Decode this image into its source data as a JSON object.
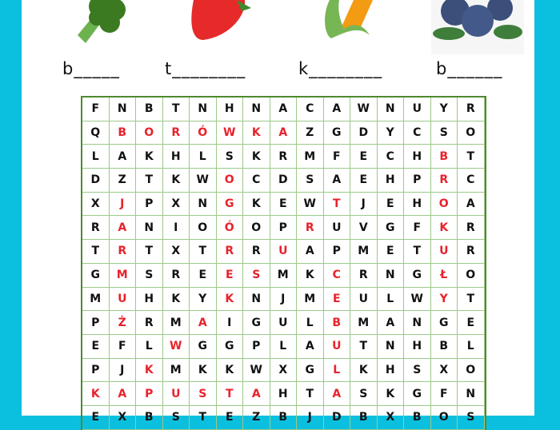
{
  "clues": [
    {
      "picture": "broccoli",
      "hint": "b_____"
    },
    {
      "picture": "strawberry",
      "hint": "t________"
    },
    {
      "picture": "corn",
      "hint": "k________"
    },
    {
      "picture": "blueberries",
      "hint": "b______"
    }
  ],
  "colors": {
    "background": "#0bc0df",
    "grid_border": "#4f8a2e",
    "highlight": "#e8222b"
  },
  "grid": [
    {
      "letters": [
        "F",
        "N",
        "B",
        "T",
        "N",
        "H",
        "N",
        "A",
        "C",
        "A",
        "W",
        "N",
        "U",
        "Y",
        "R"
      ],
      "highlighted": []
    },
    {
      "letters": [
        "Q",
        "B",
        "O",
        "R",
        "Ó",
        "W",
        "K",
        "A",
        "Z",
        "G",
        "D",
        "Y",
        "C",
        "S",
        "O"
      ],
      "highlighted": [
        1,
        2,
        3,
        4,
        5,
        6,
        7
      ]
    },
    {
      "letters": [
        "L",
        "A",
        "K",
        "H",
        "L",
        "S",
        "K",
        "R",
        "M",
        "F",
        "E",
        "C",
        "H",
        "B",
        "T"
      ],
      "highlighted": [
        13
      ]
    },
    {
      "letters": [
        "D",
        "Z",
        "T",
        "K",
        "W",
        "O",
        "C",
        "D",
        "S",
        "A",
        "E",
        "H",
        "P",
        "R",
        "C"
      ],
      "highlighted": [
        5,
        13
      ]
    },
    {
      "letters": [
        "X",
        "J",
        "P",
        "X",
        "N",
        "G",
        "K",
        "E",
        "W",
        "T",
        "J",
        "E",
        "H",
        "O",
        "A"
      ],
      "highlighted": [
        1,
        5,
        9,
        13
      ]
    },
    {
      "letters": [
        "R",
        "A",
        "N",
        "I",
        "O",
        "Ó",
        "O",
        "P",
        "R",
        "U",
        "V",
        "G",
        "F",
        "K",
        "R"
      ],
      "highlighted": [
        1,
        5,
        8,
        13
      ]
    },
    {
      "letters": [
        "T",
        "R",
        "T",
        "X",
        "T",
        "R",
        "R",
        "U",
        "A",
        "P",
        "M",
        "E",
        "T",
        "U",
        "R"
      ],
      "highlighted": [
        1,
        5,
        7,
        13
      ]
    },
    {
      "letters": [
        "G",
        "M",
        "S",
        "R",
        "E",
        "E",
        "S",
        "M",
        "K",
        "C",
        "R",
        "N",
        "G",
        "Ł",
        "O"
      ],
      "highlighted": [
        1,
        5,
        6,
        9,
        13
      ]
    },
    {
      "letters": [
        "M",
        "U",
        "H",
        "K",
        "Y",
        "K",
        "N",
        "J",
        "M",
        "E",
        "U",
        "L",
        "W",
        "Y",
        "T"
      ],
      "highlighted": [
        1,
        5,
        9,
        13
      ]
    },
    {
      "letters": [
        "P",
        "Ż",
        "R",
        "M",
        "A",
        "I",
        "G",
        "U",
        "L",
        "B",
        "M",
        "A",
        "N",
        "G",
        "E"
      ],
      "highlighted": [
        1,
        4,
        9
      ]
    },
    {
      "letters": [
        "E",
        "F",
        "L",
        "W",
        "G",
        "G",
        "P",
        "L",
        "A",
        "U",
        "T",
        "N",
        "H",
        "B",
        "L"
      ],
      "highlighted": [
        3,
        9
      ]
    },
    {
      "letters": [
        "P",
        "J",
        "K",
        "M",
        "K",
        "K",
        "W",
        "X",
        "G",
        "L",
        "K",
        "H",
        "S",
        "X",
        "O"
      ],
      "highlighted": [
        2,
        9
      ]
    },
    {
      "letters": [
        "K",
        "A",
        "P",
        "U",
        "S",
        "T",
        "A",
        "H",
        "T",
        "A",
        "S",
        "K",
        "G",
        "F",
        "N"
      ],
      "highlighted": [
        0,
        1,
        2,
        3,
        4,
        5,
        6,
        9
      ]
    },
    {
      "letters": [
        "E",
        "X",
        "B",
        "S",
        "T",
        "E",
        "Z",
        "B",
        "J",
        "D",
        "B",
        "X",
        "B",
        "O",
        "S"
      ],
      "highlighted": []
    }
  ]
}
